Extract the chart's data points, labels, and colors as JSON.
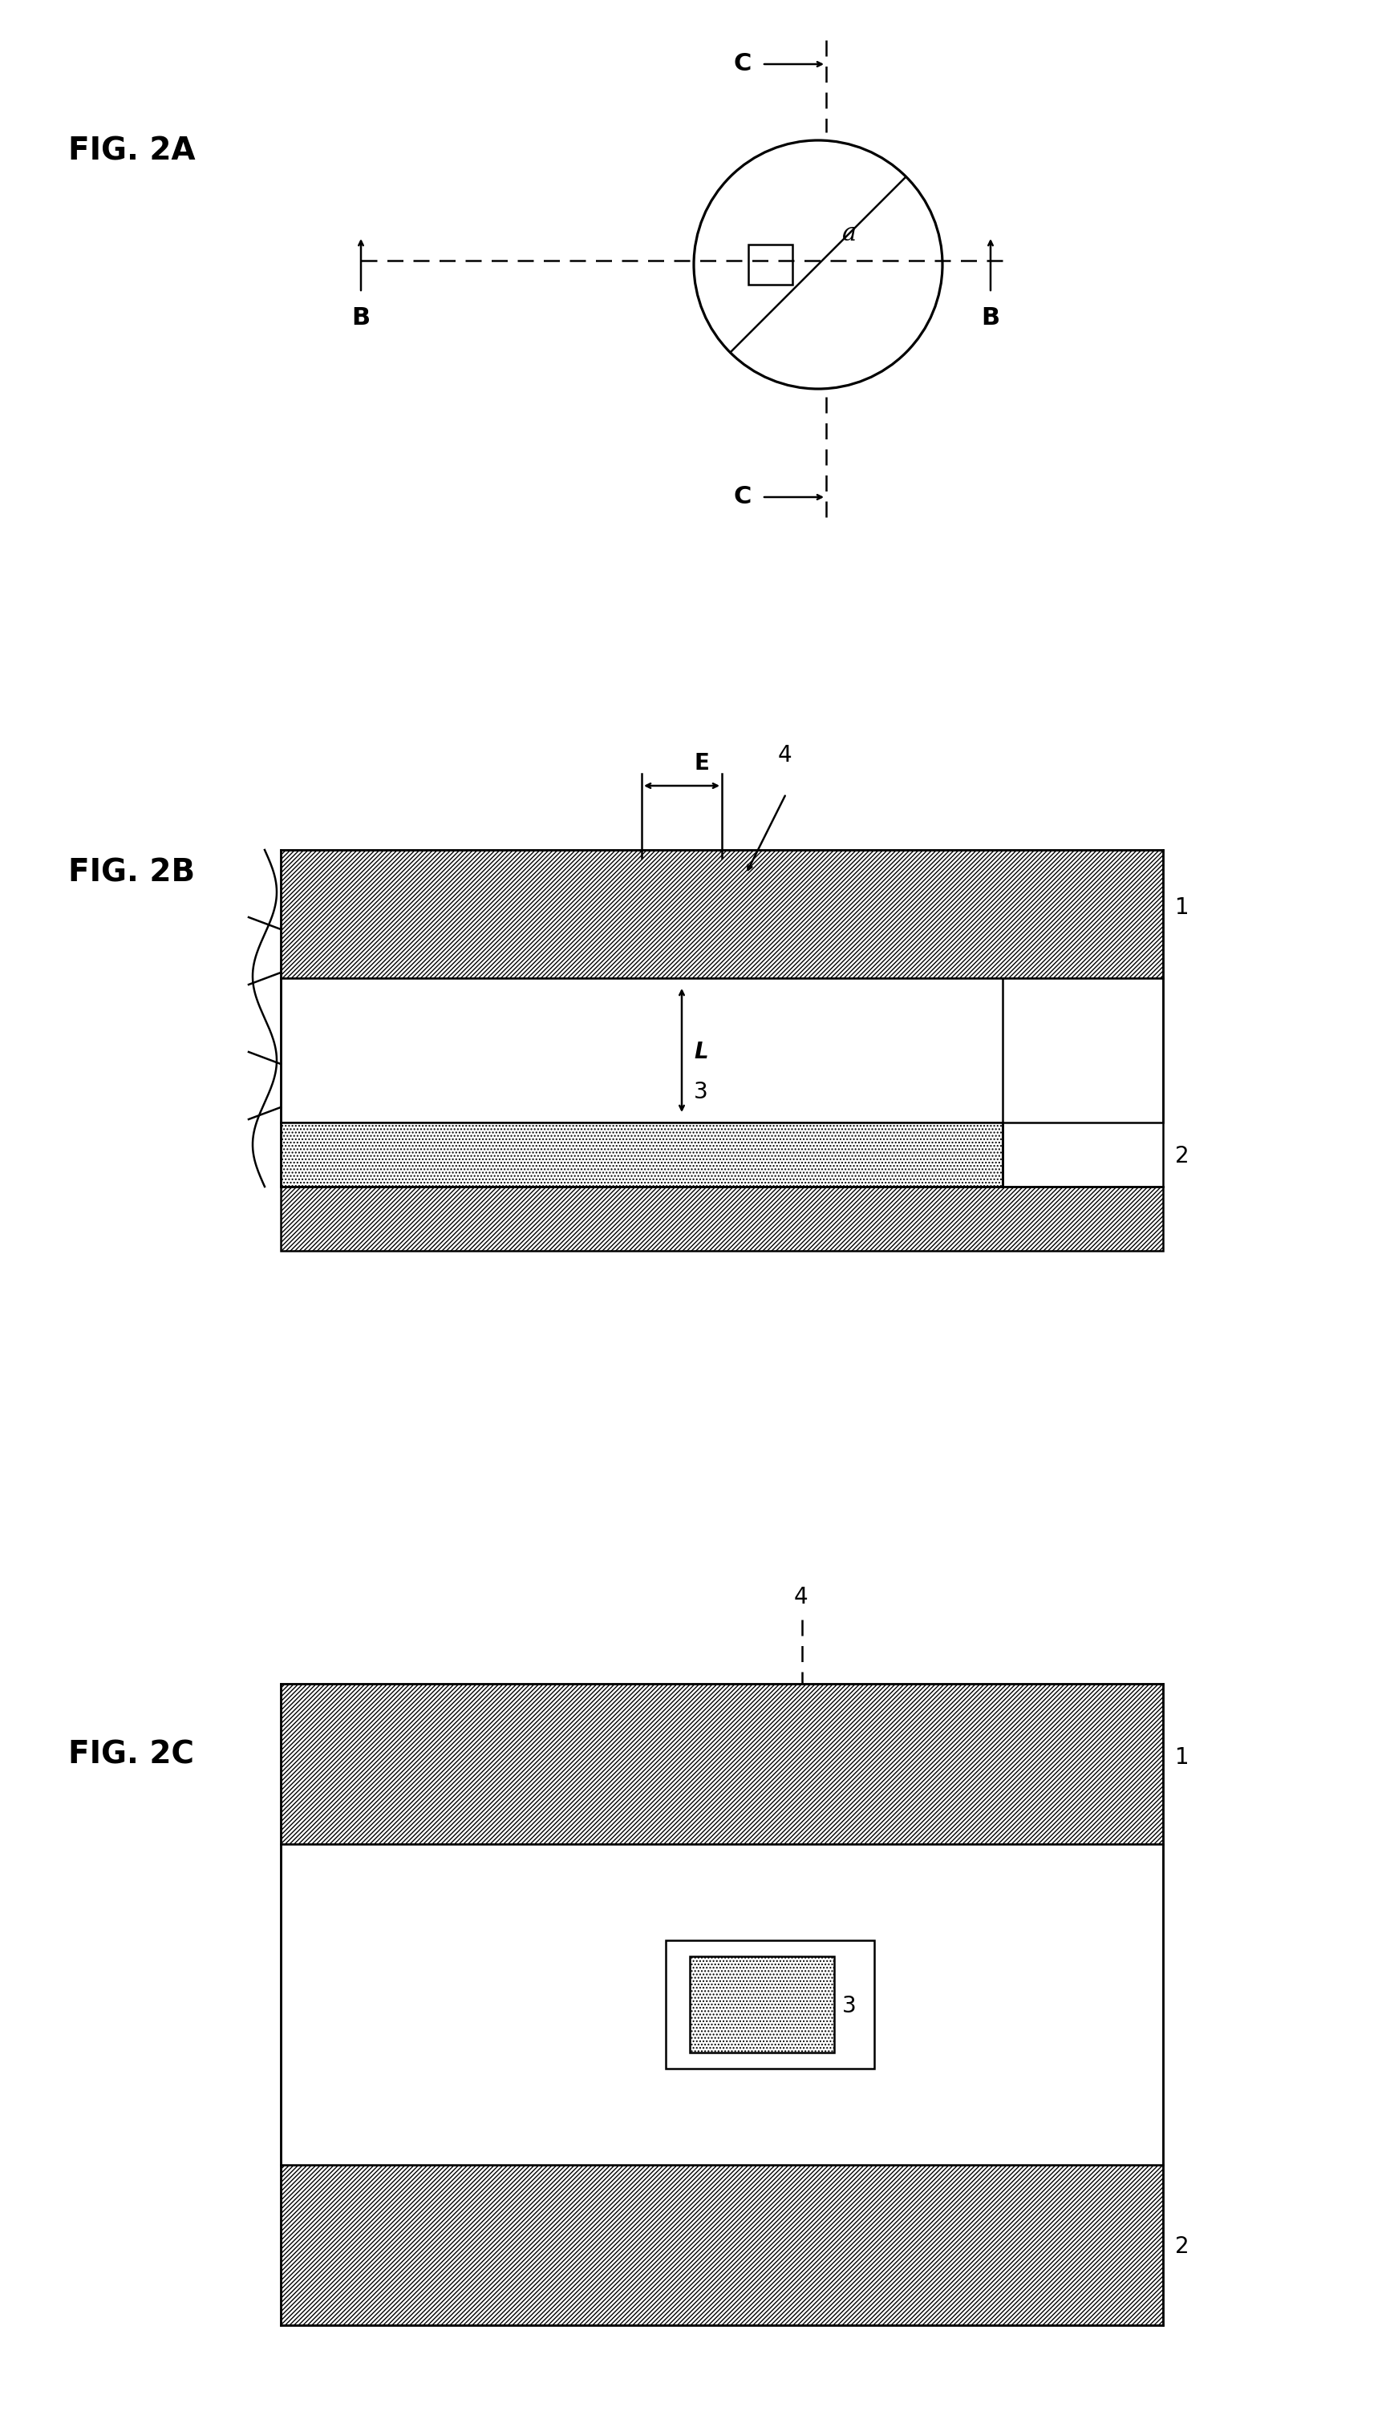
{
  "bg_color": "#ffffff",
  "line_color": "#000000",
  "hatch_color": "#000000",
  "fig2a_label": "FIG. 2A",
  "fig2b_label": "FIG. 2B",
  "fig2c_label": "FIG. 2C",
  "label_a": "a",
  "label_b": "B",
  "label_c": "C",
  "label_1": "1",
  "label_2": "2",
  "label_3": "3",
  "label_4": "4",
  "label_e": "E",
  "label_l": "L"
}
